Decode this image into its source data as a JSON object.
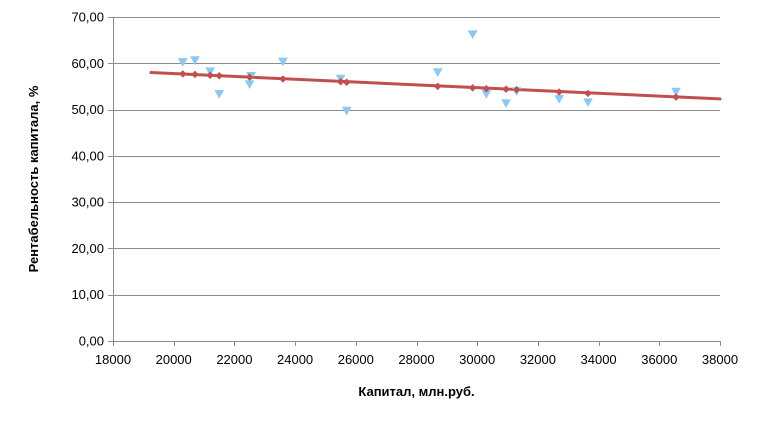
{
  "chart_data": {
    "type": "scatter",
    "xlabel": "Капитал, млн.руб.",
    "ylabel": "Рентабельность капитала, %",
    "xlim": [
      18000,
      38000
    ],
    "ylim": [
      0,
      70
    ],
    "x_ticks": [
      18000,
      20000,
      22000,
      24000,
      26000,
      28000,
      30000,
      32000,
      34000,
      36000,
      38000
    ],
    "x_tick_labels": [
      "18000",
      "20000",
      "22000",
      "24000",
      "26000",
      "28000",
      "30000",
      "32000",
      "34000",
      "36000",
      "38000"
    ],
    "y_ticks": [
      0,
      10,
      20,
      30,
      40,
      50,
      60,
      70
    ],
    "y_tick_labels": [
      "0,00",
      "10,00",
      "20,00",
      "30,00",
      "40,00",
      "50,00",
      "60,00",
      "70,00"
    ],
    "grid": "horizontal",
    "series": [
      {
        "marker": "triangle-down",
        "color": "#8cc8f4",
        "points": [
          [
            20300,
            60.2
          ],
          [
            20700,
            60.6
          ],
          [
            21200,
            58.2
          ],
          [
            21500,
            53.3
          ],
          [
            22500,
            55.4
          ],
          [
            22550,
            57.2
          ],
          [
            23600,
            60.3
          ],
          [
            25500,
            56.6
          ],
          [
            25700,
            49.7
          ],
          [
            28700,
            58.0
          ],
          [
            29850,
            66.2
          ],
          [
            30300,
            53.3
          ],
          [
            30950,
            51.3
          ],
          [
            31300,
            53.9
          ],
          [
            32700,
            52.2
          ],
          [
            33650,
            51.5
          ],
          [
            36550,
            53.8
          ]
        ]
      },
      {
        "marker": "diamond",
        "color": "#c0504d",
        "points": [
          [
            20300,
            57.7
          ],
          [
            20700,
            57.6
          ],
          [
            21200,
            57.4
          ],
          [
            21500,
            57.3
          ],
          [
            22500,
            57.0
          ],
          [
            23600,
            56.6
          ],
          [
            25500,
            56.0
          ],
          [
            25700,
            55.9
          ],
          [
            28700,
            55.0
          ],
          [
            29850,
            54.7
          ],
          [
            30300,
            54.5
          ],
          [
            30950,
            54.4
          ],
          [
            31300,
            54.3
          ],
          [
            32700,
            53.8
          ],
          [
            33650,
            53.5
          ],
          [
            36550,
            52.7
          ]
        ]
      }
    ],
    "trendline": {
      "color": "#c0504d",
      "x": [
        19250,
        38000
      ],
      "y": [
        58.0,
        52.3
      ]
    }
  }
}
